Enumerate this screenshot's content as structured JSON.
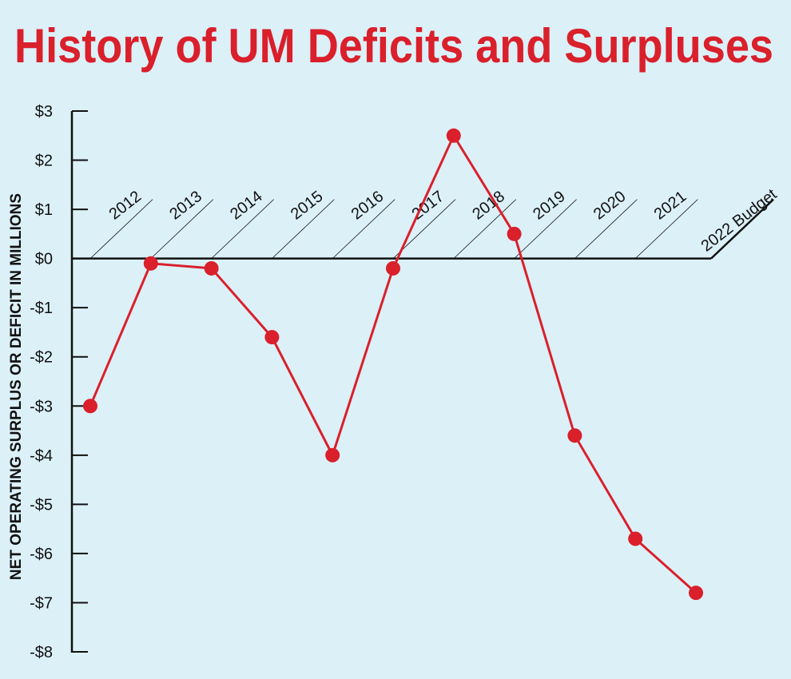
{
  "chart_data": {
    "type": "line",
    "title": "History of UM Deficits and Surpluses",
    "y_label": "NET OPERATING SURPLUS OR DEFICIT IN MILLIONS",
    "categories": [
      "2012",
      "2013",
      "2014",
      "2015",
      "2016",
      "2017",
      "2018",
      "2019",
      "2020",
      "2021",
      "2022 Budget"
    ],
    "values": [
      -3.0,
      -0.1,
      -0.2,
      -1.6,
      -4.0,
      -0.2,
      2.5,
      0.5,
      -3.6,
      -5.7,
      -6.8
    ],
    "color": "#d9202b",
    "ylim": [
      -8,
      3
    ],
    "yticks": [
      {
        "value": 3,
        "label": "$3"
      },
      {
        "value": 2,
        "label": "$2"
      },
      {
        "value": 1,
        "label": "$1"
      },
      {
        "value": 0,
        "label": "$0"
      },
      {
        "value": -1,
        "label": "-$1"
      },
      {
        "value": -2,
        "label": "-$2"
      },
      {
        "value": -3,
        "label": "-$3"
      },
      {
        "value": -4,
        "label": "-$4"
      },
      {
        "value": -5,
        "label": "-$5"
      },
      {
        "value": -6,
        "label": "-$6"
      },
      {
        "value": -7,
        "label": "-$7"
      },
      {
        "value": -8,
        "label": "-$8"
      }
    ]
  }
}
